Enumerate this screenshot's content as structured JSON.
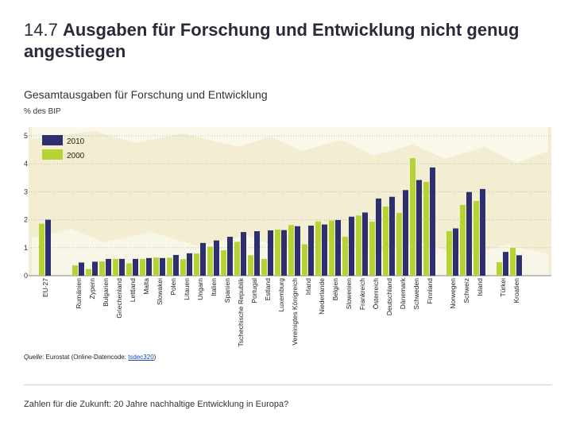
{
  "header": {
    "title_number": "14.7",
    "title_text": "Ausgaben für Forschung und Entwicklung nicht genug angestiegen"
  },
  "subtitle": "Gesamtausgaben für Forschung und Entwicklung",
  "unit": "% des BIP",
  "source": {
    "label": "Quelle",
    "text": ": Eurostat (Online-Datencode: ",
    "code": "tsdec320",
    "end": ")"
  },
  "footer": "Zahlen für die Zukunft: 20 Jahre nachhaltige Entwicklung in Europa?",
  "colors": {
    "s2010": "#2e2f6e",
    "s2000": "#b5d334",
    "map": "#f3eed2",
    "grid": "#bdbdbd"
  },
  "chart_data": {
    "type": "bar",
    "title": "",
    "xlabel": "",
    "ylabel": "% des BIP",
    "ylim": [
      0,
      5
    ],
    "yticks": [
      0,
      1,
      2,
      3,
      4,
      5
    ],
    "legend": [
      "2010",
      "2000"
    ],
    "legend_position": "top-left",
    "categories": [
      "EU-27",
      "Rumänien",
      "Zypern",
      "Bulgarien",
      "Griechenland",
      "Lettland",
      "Malta",
      "Slowakei",
      "Polen",
      "Litauen",
      "Ungarn",
      "Italien",
      "Spanien",
      "Tschechische Republik",
      "Portugal",
      "Estland",
      "Luxemburg",
      "Vereinigtes Königreich",
      "Irland",
      "Niederlande",
      "Belgien",
      "Slowenien",
      "Frankreich",
      "Österreich",
      "Deutschland",
      "Dänemark",
      "Schweden",
      "Finnland",
      "Norwegen",
      "Schweiz",
      "Island",
      "Türkei",
      "Kroatien"
    ],
    "groups": [
      1,
      1,
      1,
      1,
      1,
      1,
      1,
      1,
      1,
      1,
      1,
      1,
      1,
      1,
      1,
      1,
      1,
      1,
      1,
      1,
      1,
      1,
      1,
      1,
      1,
      1,
      1,
      1,
      1,
      1,
      1,
      1,
      1
    ],
    "group_order": [
      0,
      1,
      1,
      1,
      1,
      1,
      1,
      1,
      1,
      1,
      1,
      1,
      1,
      1,
      1,
      1,
      1,
      1,
      1,
      1,
      1,
      1,
      1,
      1,
      1,
      1,
      1,
      1,
      2,
      2,
      2,
      3,
      3
    ],
    "series": [
      {
        "name": "2010",
        "values": [
          2.0,
          0.47,
          0.5,
          0.6,
          0.6,
          0.6,
          0.63,
          0.63,
          0.74,
          0.8,
          1.17,
          1.26,
          1.39,
          1.56,
          1.59,
          1.62,
          1.63,
          1.77,
          1.79,
          1.83,
          1.99,
          2.11,
          2.26,
          2.76,
          2.82,
          3.06,
          3.42,
          3.87,
          1.69,
          2.99,
          3.1,
          0.85,
          0.73
        ]
      },
      {
        "name": "2000",
        "values": [
          1.86,
          0.37,
          0.24,
          0.51,
          0.6,
          0.44,
          0.6,
          0.65,
          0.64,
          0.59,
          0.79,
          1.04,
          0.91,
          1.21,
          0.73,
          0.6,
          1.65,
          1.81,
          1.12,
          1.94,
          1.97,
          1.39,
          2.15,
          1.93,
          2.47,
          2.24,
          4.2,
          3.35,
          1.59,
          2.53,
          2.67,
          0.48,
          1.0
        ]
      }
    ]
  }
}
